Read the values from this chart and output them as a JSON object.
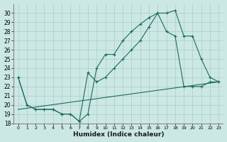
{
  "xlabel": "Humidex (Indice chaleur)",
  "xlim": [
    -0.5,
    23.5
  ],
  "ylim": [
    18,
    31
  ],
  "yticks": [
    18,
    19,
    20,
    21,
    22,
    23,
    24,
    25,
    26,
    27,
    28,
    29,
    30
  ],
  "xticks": [
    0,
    1,
    2,
    3,
    4,
    5,
    6,
    7,
    8,
    9,
    10,
    11,
    12,
    13,
    14,
    15,
    16,
    17,
    18,
    19,
    20,
    21,
    22,
    23
  ],
  "background_color": "#cce8e4",
  "grid_color": "#aaccca",
  "line_color": "#1a6b5e",
  "line1_x": [
    0,
    1,
    2,
    3,
    4,
    5,
    6,
    7,
    8,
    9,
    10,
    11,
    12,
    13,
    14,
    15,
    16,
    17,
    18,
    19,
    20,
    21,
    22,
    23
  ],
  "line1_y": [
    23,
    20,
    19.5,
    19.5,
    19.5,
    19,
    19,
    18.2,
    19,
    24,
    25.5,
    25.5,
    27,
    28,
    28.8,
    29.5,
    30,
    30,
    30.3,
    27.5,
    27.5,
    25,
    23,
    22.5
  ],
  "line2_x": [
    0,
    1,
    2,
    3,
    4,
    5,
    6,
    7,
    8,
    9,
    10,
    11,
    12,
    13,
    14,
    15,
    16,
    17,
    18,
    19,
    20,
    21,
    22,
    23
  ],
  "line2_y": [
    23,
    20,
    19.5,
    19.5,
    19.5,
    19,
    19,
    18.2,
    23.5,
    22.5,
    23,
    24,
    25,
    26,
    27,
    28.5,
    30,
    28,
    27.5,
    22,
    22,
    22,
    22.5,
    22.5
  ],
  "line3_x": [
    0,
    23
  ],
  "line3_y": [
    19.5,
    22.5
  ]
}
